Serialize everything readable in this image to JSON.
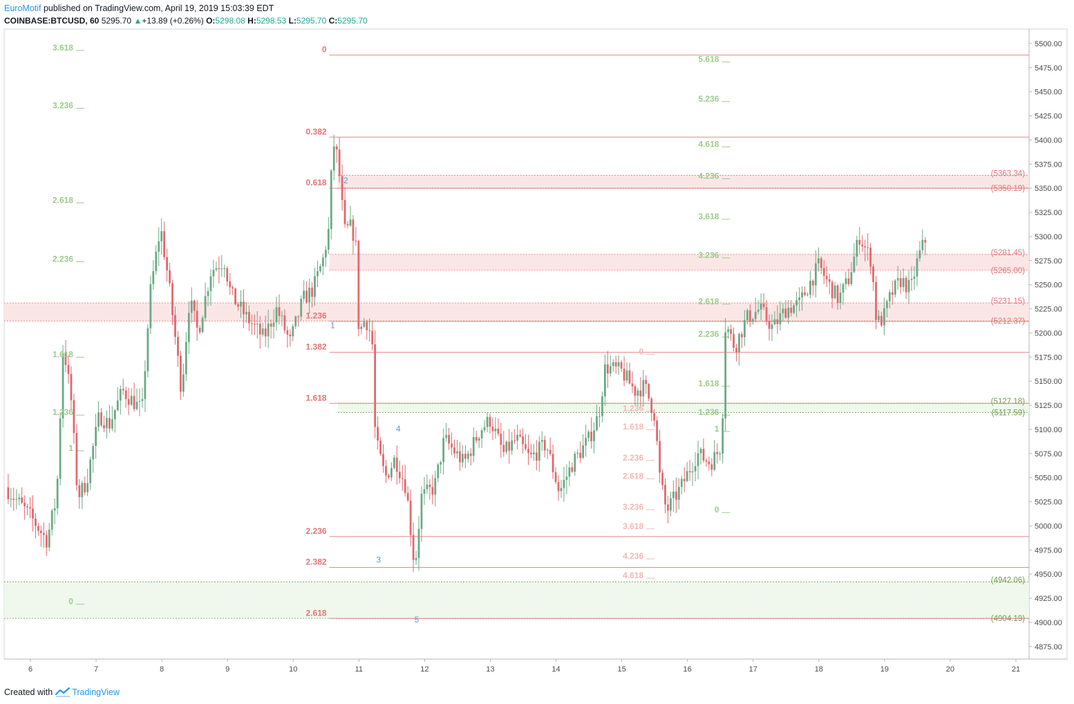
{
  "header": {
    "author": "EuroMotif",
    "published_text": "published on TradingView.com, April 19, 2019 15:03:39 EDT",
    "symbol": "COINBASE:BTCUSD, 60",
    "last": "5295.70",
    "change": "+13.89 (+0.26%)",
    "o_label": "O:",
    "o_value": "5298.08",
    "h_label": "H:",
    "h_value": "5298.53",
    "l_label": "L:",
    "l_value": "5295.70",
    "c_label": "C:",
    "c_value": "5295.70"
  },
  "footer": {
    "created_with": "Created with",
    "brand": "TradingView"
  },
  "colors": {
    "up": "#6aa984",
    "down": "#e0686d",
    "fib_red": "#e57373",
    "fib_red_light": "#f2b8b5",
    "fib_green": "#9ccc8a",
    "fib_green_dark": "#6e9e4c",
    "zone_red": "#fbe3e3",
    "zone_green": "#eef6ea",
    "wave": "#5b9bd5",
    "axis_text": "#4a4a4a"
  },
  "chart_data": {
    "type": "candlestick",
    "ylim": [
      4862,
      5515
    ],
    "xlim": [
      5.6,
      21.2
    ],
    "y_ticks": [
      4875,
      4900,
      4925,
      4950,
      4975,
      5000,
      5025,
      5050,
      5075,
      5100,
      5125,
      5150,
      5175,
      5200,
      5225,
      5250,
      5275,
      5300,
      5325,
      5350,
      5375,
      5400,
      5425,
      5450,
      5475,
      5500
    ],
    "x_ticks": [
      {
        "x": 6,
        "label": "6"
      },
      {
        "x": 7,
        "label": "7"
      },
      {
        "x": 8,
        "label": "8"
      },
      {
        "x": 9,
        "label": "9"
      },
      {
        "x": 10,
        "label": "10"
      },
      {
        "x": 11,
        "label": "11"
      },
      {
        "x": 12,
        "label": "12"
      },
      {
        "x": 13,
        "label": "13"
      },
      {
        "x": 14,
        "label": "14"
      },
      {
        "x": 15,
        "label": "15"
      },
      {
        "x": 16,
        "label": "16"
      },
      {
        "x": 17,
        "label": "17"
      },
      {
        "x": 18,
        "label": "18"
      },
      {
        "x": 19,
        "label": "19"
      },
      {
        "x": 20,
        "label": "20"
      },
      {
        "x": 21,
        "label": "21"
      }
    ],
    "price_anchors": [
      [
        5.62,
        5040
      ],
      [
        6.0,
        5010
      ],
      [
        6.25,
        4985
      ],
      [
        6.4,
        5030
      ],
      [
        6.5,
        5190
      ],
      [
        6.62,
        5130
      ],
      [
        6.72,
        5030
      ],
      [
        6.85,
        5045
      ],
      [
        7.05,
        5115
      ],
      [
        7.2,
        5105
      ],
      [
        7.4,
        5140
      ],
      [
        7.7,
        5120
      ],
      [
        7.82,
        5240
      ],
      [
        7.98,
        5310
      ],
      [
        8.1,
        5255
      ],
      [
        8.3,
        5140
      ],
      [
        8.42,
        5235
      ],
      [
        8.55,
        5200
      ],
      [
        8.75,
        5265
      ],
      [
        8.95,
        5275
      ],
      [
        9.05,
        5240
      ],
      [
        9.3,
        5215
      ],
      [
        9.55,
        5195
      ],
      [
        9.75,
        5225
      ],
      [
        9.95,
        5190
      ],
      [
        10.15,
        5235
      ],
      [
        10.3,
        5245
      ],
      [
        10.45,
        5275
      ],
      [
        10.55,
        5310
      ],
      [
        10.6,
        5400
      ],
      [
        10.68,
        5380
      ],
      [
        10.78,
        5305
      ],
      [
        10.88,
        5310
      ],
      [
        10.95,
        5295
      ],
      [
        11.0,
        5200
      ],
      [
        11.1,
        5215
      ],
      [
        11.2,
        5195
      ],
      [
        11.25,
        5090
      ],
      [
        11.4,
        5050
      ],
      [
        11.55,
        5070
      ],
      [
        11.72,
        5040
      ],
      [
        11.85,
        4955
      ],
      [
        11.95,
        5030
      ],
      [
        12.15,
        5040
      ],
      [
        12.3,
        5090
      ],
      [
        12.6,
        5065
      ],
      [
        12.85,
        5100
      ],
      [
        13.0,
        5110
      ],
      [
        13.2,
        5075
      ],
      [
        13.4,
        5090
      ],
      [
        13.6,
        5070
      ],
      [
        13.85,
        5085
      ],
      [
        14.05,
        5035
      ],
      [
        14.25,
        5065
      ],
      [
        14.5,
        5090
      ],
      [
        14.65,
        5115
      ],
      [
        14.75,
        5165
      ],
      [
        15.0,
        5160
      ],
      [
        15.2,
        5140
      ],
      [
        15.35,
        5145
      ],
      [
        15.5,
        5115
      ],
      [
        15.58,
        5050
      ],
      [
        15.68,
        5015
      ],
      [
        15.9,
        5040
      ],
      [
        16.15,
        5075
      ],
      [
        16.35,
        5065
      ],
      [
        16.45,
        5075
      ],
      [
        16.52,
        5085
      ],
      [
        16.58,
        5210
      ],
      [
        16.72,
        5185
      ],
      [
        16.9,
        5215
      ],
      [
        17.1,
        5225
      ],
      [
        17.3,
        5205
      ],
      [
        17.5,
        5225
      ],
      [
        17.7,
        5230
      ],
      [
        17.85,
        5250
      ],
      [
        18.0,
        5270
      ],
      [
        18.15,
        5250
      ],
      [
        18.3,
        5235
      ],
      [
        18.45,
        5255
      ],
      [
        18.62,
        5300
      ],
      [
        18.8,
        5275
      ],
      [
        18.88,
        5210
      ],
      [
        18.98,
        5215
      ],
      [
        19.1,
        5240
      ],
      [
        19.25,
        5255
      ],
      [
        19.4,
        5245
      ],
      [
        19.48,
        5270
      ],
      [
        19.55,
        5285
      ],
      [
        19.62,
        5296
      ]
    ],
    "fib_sets": [
      {
        "color": "fib_green",
        "x0": 5.6,
        "x1": 6.82,
        "lines": false,
        "levels": [
          {
            "label": "3.618",
            "y": 5495
          },
          {
            "label": "3.236",
            "y": 5435
          },
          {
            "label": "2.618",
            "y": 5337
          },
          {
            "label": "2.236",
            "y": 5276
          },
          {
            "label": "1.618",
            "y": 5177
          },
          {
            "label": "1.236",
            "y": 5117
          },
          {
            "label": "1",
            "y": 5080
          },
          {
            "label": "0",
            "y": 4921
          }
        ]
      },
      {
        "color": "fib_red",
        "x0": 10.55,
        "x1": 21.2,
        "lines": true,
        "levels": [
          {
            "label": "0",
            "y": 5488
          },
          {
            "label": "0.382",
            "y": 5403
          },
          {
            "label": "0.618",
            "y": 5350
          },
          {
            "label": "1.236",
            "y": 5212
          },
          {
            "label": "1.382",
            "y": 5180
          },
          {
            "label": "1.618",
            "y": 5127
          },
          {
            "label": "2.236",
            "y": 4989
          },
          {
            "label": "2.382",
            "y": 4957
          },
          {
            "label": "2.618",
            "y": 4904
          }
        ]
      },
      {
        "color": "fib_red_light",
        "x0": 15.1,
        "x1": 15.5,
        "lines": false,
        "levels": [
          {
            "label": "0",
            "y": 5180
          },
          {
            "label": "1.236",
            "y": 5121
          },
          {
            "label": "1.618",
            "y": 5102
          },
          {
            "label": "2.236",
            "y": 5070
          },
          {
            "label": "2.618",
            "y": 5051
          },
          {
            "label": "3.236",
            "y": 5019
          },
          {
            "label": "3.618",
            "y": 4999
          },
          {
            "label": "4.236",
            "y": 4968
          },
          {
            "label": "4.618",
            "y": 4948
          }
        ]
      },
      {
        "color": "fib_green",
        "x0": 16.1,
        "x1": 16.65,
        "lines": false,
        "levels": [
          {
            "label": "5.618",
            "y": 5483
          },
          {
            "label": "5.236",
            "y": 5442
          },
          {
            "label": "4.618",
            "y": 5395
          },
          {
            "label": "4.236",
            "y": 5362
          },
          {
            "label": "3.618",
            "y": 5320
          },
          {
            "label": "3.236",
            "y": 5280
          },
          {
            "label": "2.618",
            "y": 5232
          },
          {
            "label": "2.236",
            "y": 5198
          },
          {
            "label": "1.618",
            "y": 5147
          },
          {
            "label": "1.236",
            "y": 5117
          },
          {
            "label": "1",
            "y": 5100
          },
          {
            "label": "0",
            "y": 5016
          }
        ]
      }
    ],
    "zones": [
      {
        "color": "red",
        "from": 5350.19,
        "to": 5363.34,
        "x0": 10.68,
        "labels": [
          "(5363.34)",
          "(5350.19)"
        ]
      },
      {
        "color": "red",
        "from": 5265.0,
        "to": 5281.45,
        "x0": 10.55,
        "labels": [
          "(5281.45)",
          "(5265.00)"
        ]
      },
      {
        "color": "red",
        "from": 5212.37,
        "to": 5231.15,
        "x0": 5.6,
        "labels": [
          "(5231.15)",
          "(5212.37)"
        ]
      },
      {
        "color": "green",
        "from": 5117.59,
        "to": 5127.18,
        "x0": 10.68,
        "labels": [
          "(5127.18)",
          "(5117.59)"
        ]
      },
      {
        "color": "green",
        "from": 4904.19,
        "to": 4942.06,
        "x0": 5.6,
        "labels": [
          "(4942.06)",
          "(4904.19)"
        ]
      }
    ],
    "wave_labels": [
      {
        "label": "1",
        "x": 10.6,
        "y": 5205
      },
      {
        "label": "2",
        "x": 10.8,
        "y": 5355
      },
      {
        "label": "3",
        "x": 11.3,
        "y": 4962
      },
      {
        "label": "4",
        "x": 11.6,
        "y": 5098
      },
      {
        "label": "5",
        "x": 11.88,
        "y": 4900
      }
    ]
  }
}
